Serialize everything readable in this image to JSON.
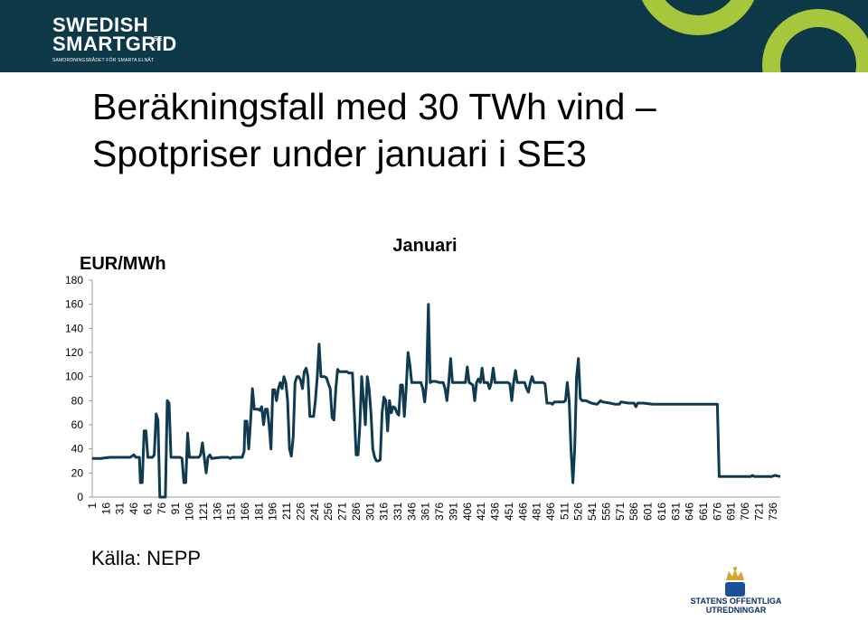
{
  "header": {
    "logo_line1": "SWEDISH",
    "logo_line2": "SMARTGRID",
    "logo_suffix": ".SE",
    "tagline": "SAMORDNINGSRÅDET FÖR SMARTA ELNÄT"
  },
  "slide": {
    "title_line1": "Beräkningsfall med 30 TWh vind –",
    "title_line2": "Spotpriser under januari i SE3",
    "source": "Källa: NEPP"
  },
  "footer": {
    "seal_line1": "STATENS OFFENTLIGA",
    "seal_line2": "UTREDNINGAR"
  },
  "colors": {
    "header_bg": "#0c3848",
    "accent_green": "#a6c63b",
    "series_line": "#0e3b4f"
  },
  "chart_data": {
    "type": "line",
    "title": "Januari",
    "ylabel": "EUR/MWh",
    "xlabel": "",
    "ylim": [
      0,
      180
    ],
    "yticks": [
      0,
      20,
      40,
      60,
      80,
      100,
      120,
      140,
      160,
      180
    ],
    "x_range": [
      1,
      744
    ],
    "xticks": [
      1,
      16,
      31,
      46,
      61,
      76,
      91,
      106,
      121,
      136,
      151,
      166,
      181,
      196,
      211,
      226,
      241,
      256,
      271,
      286,
      301,
      316,
      331,
      346,
      361,
      376,
      391,
      406,
      421,
      436,
      451,
      466,
      481,
      496,
      511,
      526,
      541,
      556,
      571,
      586,
      601,
      616,
      631,
      646,
      661,
      676,
      691,
      706,
      721,
      736
    ],
    "grid": false,
    "legend": false,
    "series": [
      {
        "points": [
          [
            1,
            32
          ],
          [
            10,
            32
          ],
          [
            20,
            33
          ],
          [
            30,
            33
          ],
          [
            38,
            33
          ],
          [
            42,
            33
          ],
          [
            46,
            35
          ],
          [
            48,
            33
          ],
          [
            52,
            33
          ],
          [
            53,
            12
          ],
          [
            55,
            12
          ],
          [
            57,
            55
          ],
          [
            59,
            55
          ],
          [
            61,
            33
          ],
          [
            66,
            33
          ],
          [
            68,
            35
          ],
          [
            70,
            69
          ],
          [
            72,
            64
          ],
          [
            74,
            0
          ],
          [
            80,
            0
          ],
          [
            82,
            80
          ],
          [
            84,
            78
          ],
          [
            86,
            33
          ],
          [
            96,
            33
          ],
          [
            98,
            32
          ],
          [
            100,
            12
          ],
          [
            102,
            12
          ],
          [
            104,
            53
          ],
          [
            106,
            33
          ],
          [
            116,
            33
          ],
          [
            118,
            35
          ],
          [
            120,
            45
          ],
          [
            122,
            33
          ],
          [
            124,
            20
          ],
          [
            126,
            33
          ],
          [
            128,
            35
          ],
          [
            130,
            32
          ],
          [
            140,
            33
          ],
          [
            148,
            33
          ],
          [
            150,
            32
          ],
          [
            152,
            33
          ],
          [
            163,
            33
          ],
          [
            165,
            38
          ],
          [
            166,
            63
          ],
          [
            168,
            63
          ],
          [
            170,
            40
          ],
          [
            172,
            63
          ],
          [
            174,
            90
          ],
          [
            176,
            73
          ],
          [
            180,
            73
          ],
          [
            182,
            72
          ],
          [
            184,
            75
          ],
          [
            186,
            60
          ],
          [
            188,
            73
          ],
          [
            190,
            73
          ],
          [
            192,
            60
          ],
          [
            194,
            40
          ],
          [
            196,
            89
          ],
          [
            198,
            89
          ],
          [
            200,
            80
          ],
          [
            202,
            90
          ],
          [
            204,
            95
          ],
          [
            206,
            90
          ],
          [
            208,
            100
          ],
          [
            210,
            95
          ],
          [
            212,
            80
          ],
          [
            214,
            40
          ],
          [
            216,
            34
          ],
          [
            218,
            50
          ],
          [
            220,
            95
          ],
          [
            222,
            100
          ],
          [
            224,
            100
          ],
          [
            226,
            97
          ],
          [
            228,
            90
          ],
          [
            230,
            104
          ],
          [
            232,
            107
          ],
          [
            234,
            100
          ],
          [
            236,
            67
          ],
          [
            240,
            67
          ],
          [
            242,
            80
          ],
          [
            244,
            100
          ],
          [
            246,
            127
          ],
          [
            248,
            100
          ],
          [
            252,
            100
          ],
          [
            254,
            99
          ],
          [
            256,
            94
          ],
          [
            258,
            90
          ],
          [
            260,
            66
          ],
          [
            262,
            64
          ],
          [
            264,
            90
          ],
          [
            266,
            106
          ],
          [
            268,
            104
          ],
          [
            276,
            104
          ],
          [
            278,
            103
          ],
          [
            282,
            103
          ],
          [
            284,
            70
          ],
          [
            286,
            35
          ],
          [
            288,
            35
          ],
          [
            290,
            60
          ],
          [
            292,
            100
          ],
          [
            294,
            80
          ],
          [
            296,
            60
          ],
          [
            298,
            100
          ],
          [
            300,
            90
          ],
          [
            302,
            70
          ],
          [
            304,
            40
          ],
          [
            306,
            33
          ],
          [
            308,
            30
          ],
          [
            310,
            30
          ],
          [
            312,
            31
          ],
          [
            314,
            70
          ],
          [
            316,
            83
          ],
          [
            318,
            80
          ],
          [
            320,
            55
          ],
          [
            322,
            80
          ],
          [
            324,
            70
          ],
          [
            326,
            75
          ],
          [
            328,
            74
          ],
          [
            330,
            70
          ],
          [
            332,
            68
          ],
          [
            334,
            93
          ],
          [
            336,
            93
          ],
          [
            338,
            67
          ],
          [
            340,
            90
          ],
          [
            342,
            120
          ],
          [
            344,
            110
          ],
          [
            346,
            95
          ],
          [
            348,
            95
          ],
          [
            356,
            95
          ],
          [
            358,
            90
          ],
          [
            360,
            79
          ],
          [
            362,
            95
          ],
          [
            364,
            160
          ],
          [
            366,
            95
          ],
          [
            368,
            96
          ],
          [
            372,
            96
          ],
          [
            376,
            95
          ],
          [
            380,
            95
          ],
          [
            382,
            90
          ],
          [
            384,
            80
          ],
          [
            386,
            95
          ],
          [
            388,
            115
          ],
          [
            390,
            95
          ],
          [
            400,
            95
          ],
          [
            404,
            95
          ],
          [
            406,
            108
          ],
          [
            408,
            95
          ],
          [
            412,
            93
          ],
          [
            414,
            80
          ],
          [
            416,
            95
          ],
          [
            418,
            98
          ],
          [
            420,
            95
          ],
          [
            422,
            107
          ],
          [
            424,
            95
          ],
          [
            428,
            95
          ],
          [
            430,
            90
          ],
          [
            432,
            95
          ],
          [
            434,
            107
          ],
          [
            436,
            95
          ],
          [
            446,
            95
          ],
          [
            450,
            95
          ],
          [
            452,
            94
          ],
          [
            454,
            80
          ],
          [
            456,
            95
          ],
          [
            458,
            105
          ],
          [
            460,
            95
          ],
          [
            468,
            95
          ],
          [
            470,
            90
          ],
          [
            472,
            87
          ],
          [
            474,
            95
          ],
          [
            476,
            100
          ],
          [
            478,
            95
          ],
          [
            488,
            95
          ],
          [
            490,
            94
          ],
          [
            492,
            78
          ],
          [
            496,
            78
          ],
          [
            498,
            77
          ],
          [
            500,
            79
          ],
          [
            504,
            79
          ],
          [
            510,
            79
          ],
          [
            512,
            80
          ],
          [
            514,
            95
          ],
          [
            516,
            80
          ],
          [
            518,
            40
          ],
          [
            520,
            12
          ],
          [
            522,
            40
          ],
          [
            524,
            100
          ],
          [
            526,
            115
          ],
          [
            528,
            82
          ],
          [
            530,
            80
          ],
          [
            534,
            80
          ],
          [
            540,
            78
          ],
          [
            546,
            77
          ],
          [
            550,
            80
          ],
          [
            552,
            79
          ],
          [
            560,
            78
          ],
          [
            566,
            77
          ],
          [
            570,
            77
          ],
          [
            572,
            79
          ],
          [
            580,
            78
          ],
          [
            586,
            78
          ],
          [
            588,
            75
          ],
          [
            590,
            78
          ],
          [
            596,
            78
          ],
          [
            606,
            77
          ],
          [
            620,
            77
          ],
          [
            640,
            77
          ],
          [
            660,
            77
          ],
          [
            676,
            77
          ],
          [
            678,
            17
          ],
          [
            680,
            17
          ],
          [
            700,
            17
          ],
          [
            712,
            17
          ],
          [
            714,
            18
          ],
          [
            716,
            17
          ],
          [
            726,
            17
          ],
          [
            735,
            17
          ],
          [
            738,
            18
          ],
          [
            744,
            17
          ]
        ]
      }
    ]
  }
}
